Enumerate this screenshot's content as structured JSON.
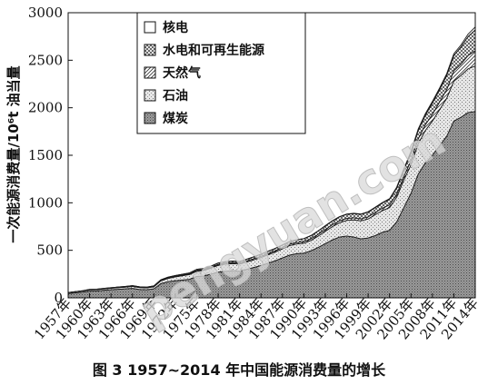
{
  "caption": "图 3 1957~2014 年中国能源消费量的增长",
  "watermark": "pengyuan.com",
  "chart_data": {
    "type": "area",
    "stacked": true,
    "title": "",
    "xlabel": "",
    "ylabel": "一次能源消费量/10⁶t 油当量",
    "ylim": [
      0,
      3000
    ],
    "yticks": [
      0,
      500,
      1000,
      1500,
      2000,
      2500,
      3000
    ],
    "xlim": [
      1957,
      2014
    ],
    "xticks": [
      "1957年",
      "1960年",
      "1963年",
      "1966年",
      "1969年",
      "1972年",
      "1975年",
      "1978年",
      "1981年",
      "1984年",
      "1987年",
      "1990年",
      "1993年",
      "1996年",
      "1999年",
      "2002年",
      "2005年",
      "2008年",
      "2011年",
      "2014年"
    ],
    "grid": false,
    "legend_position": "top-left",
    "x": [
      1957,
      1959,
      1960,
      1961,
      1962,
      1963,
      1965,
      1966,
      1967,
      1968,
      1969,
      1970,
      1971,
      1972,
      1974,
      1975,
      1976,
      1977,
      1978,
      1979,
      1980,
      1981,
      1982,
      1983,
      1984,
      1985,
      1986,
      1987,
      1988,
      1989,
      1990,
      1991,
      1992,
      1993,
      1994,
      1995,
      1996,
      1997,
      1998,
      1999,
      2000,
      2001,
      2002,
      2003,
      2004,
      2005,
      2006,
      2007,
      2008,
      2009,
      2010,
      2011,
      2012,
      2013,
      2014
    ],
    "series": [
      {
        "name": "煤炭",
        "pattern": "dense-dot",
        "values": [
          45,
          60,
          70,
          72,
          80,
          85,
          95,
          100,
          88,
          85,
          95,
          150,
          170,
          180,
          195,
          225,
          230,
          250,
          270,
          280,
          285,
          280,
          300,
          320,
          340,
          365,
          390,
          420,
          450,
          465,
          470,
          495,
          530,
          570,
          610,
          640,
          650,
          640,
          620,
          630,
          655,
          690,
          710,
          800,
          950,
          1100,
          1300,
          1420,
          1500,
          1600,
          1700,
          1860,
          1900,
          1950,
          1960
        ]
      },
      {
        "name": "石油",
        "pattern": "sparse-dot",
        "values": [
          10,
          12,
          14,
          14,
          15,
          16,
          18,
          20,
          20,
          20,
          22,
          30,
          35,
          40,
          50,
          55,
          58,
          62,
          72,
          74,
          75,
          75,
          78,
          80,
          85,
          88,
          92,
          96,
          100,
          102,
          105,
          110,
          120,
          130,
          140,
          150,
          165,
          180,
          190,
          200,
          220,
          228,
          240,
          260,
          290,
          300,
          320,
          340,
          360,
          380,
          400,
          420,
          440,
          460,
          480
        ]
      },
      {
        "name": "天然气",
        "pattern": "diagonal",
        "values": [
          0,
          1,
          2,
          2,
          2,
          2,
          3,
          3,
          3,
          3,
          3,
          4,
          5,
          6,
          7,
          8,
          9,
          9,
          10,
          11,
          11,
          11,
          11,
          12,
          12,
          13,
          13,
          14,
          14,
          15,
          16,
          17,
          18,
          19,
          19,
          20,
          20,
          21,
          21,
          22,
          23,
          25,
          28,
          30,
          35,
          45,
          50,
          60,
          70,
          80,
          90,
          110,
          120,
          140,
          160
        ]
      },
      {
        "name": "水电和可再生能源",
        "pattern": "crosshatch",
        "values": [
          1,
          2,
          3,
          3,
          3,
          4,
          4,
          5,
          5,
          5,
          6,
          7,
          8,
          9,
          10,
          12,
          12,
          13,
          14,
          15,
          16,
          16,
          18,
          20,
          22,
          24,
          25,
          26,
          28,
          30,
          32,
          33,
          35,
          38,
          40,
          42,
          44,
          46,
          48,
          50,
          52,
          56,
          60,
          65,
          70,
          80,
          90,
          100,
          120,
          130,
          150,
          160,
          180,
          200,
          220
        ]
      },
      {
        "name": "核电",
        "pattern": "none",
        "values": [
          0,
          0,
          0,
          0,
          0,
          0,
          0,
          0,
          0,
          0,
          0,
          0,
          0,
          0,
          0,
          0,
          0,
          0,
          0,
          0,
          0,
          0,
          0,
          0,
          0,
          0,
          0,
          0,
          0,
          0,
          0,
          1,
          2,
          3,
          3,
          3,
          3,
          3,
          3,
          4,
          4,
          4,
          5,
          10,
          12,
          15,
          15,
          16,
          17,
          17,
          18,
          19,
          21,
          25,
          30
        ]
      }
    ]
  }
}
